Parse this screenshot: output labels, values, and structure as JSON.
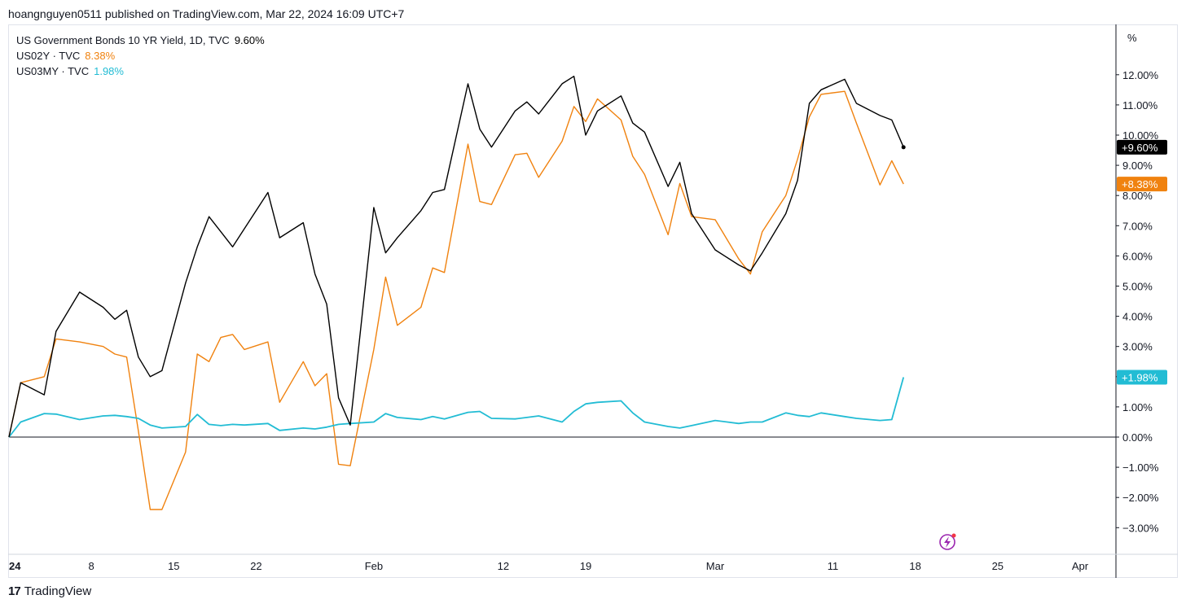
{
  "header": {
    "publish_line": "hoangnguyen0511 published on TradingView.com, Mar 22, 2024 16:09 UTC+7"
  },
  "footer": {
    "brand_text": "TradingView",
    "brand_logo": "17"
  },
  "unit_label": "%",
  "icons": {
    "lightning": "lightning-bolt-icon",
    "brand": "tradingview-logo-icon"
  },
  "colors": {
    "us10y": "#000000",
    "us02y": "#f0820f",
    "us03my": "#22bcd4",
    "axis": "#131722",
    "zero_line": "#131722"
  },
  "legend": [
    {
      "label": "US Government Bonds 10 YR Yield, 1D, TVC",
      "value": "9.60%",
      "color": "#000000"
    },
    {
      "label": "US02Y · TVC",
      "value": "8.38%",
      "color": "#f0820f"
    },
    {
      "label": "US03MY · TVC",
      "value": "1.98%",
      "color": "#22bcd4"
    }
  ],
  "chart_data": {
    "type": "line",
    "ylim": [
      -3.8,
      12.8
    ],
    "y_ticks": [
      {
        "value": 12,
        "label": "12.00%"
      },
      {
        "value": 11,
        "label": "11.00%"
      },
      {
        "value": 10,
        "label": "10.00%"
      },
      {
        "value": 9,
        "label": "9.00%"
      },
      {
        "value": 8,
        "label": "8.00%"
      },
      {
        "value": 7,
        "label": "7.00%"
      },
      {
        "value": 6,
        "label": "6.00%"
      },
      {
        "value": 5,
        "label": "5.00%"
      },
      {
        "value": 4,
        "label": "4.00%"
      },
      {
        "value": 3,
        "label": "3.00%"
      },
      {
        "value": 2,
        "label": "2.00%"
      },
      {
        "value": 1,
        "label": "1.00%"
      },
      {
        "value": 0,
        "label": "0.00%"
      },
      {
        "value": -1,
        "label": "−1.00%"
      },
      {
        "value": -2,
        "label": "−2.00%"
      },
      {
        "value": -3,
        "label": "−3.00%"
      }
    ],
    "x_ticks": [
      {
        "date": "2024-01-01",
        "label": "24",
        "bold": true
      },
      {
        "date": "2024-01-08",
        "label": "8"
      },
      {
        "date": "2024-01-15",
        "label": "15"
      },
      {
        "date": "2024-01-22",
        "label": "22"
      },
      {
        "date": "2024-02-01",
        "label": "Feb"
      },
      {
        "date": "2024-02-12",
        "label": "12"
      },
      {
        "date": "2024-02-19",
        "label": "19"
      },
      {
        "date": "2024-03-01",
        "label": "Mar"
      },
      {
        "date": "2024-03-11",
        "label": "11"
      },
      {
        "date": "2024-03-18",
        "label": "18"
      },
      {
        "date": "2024-03-25",
        "label": "25"
      },
      {
        "date": "2024-04-01",
        "label": "Apr"
      }
    ],
    "x_range": [
      "2024-01-01",
      "2024-04-05"
    ],
    "grid": false,
    "series": [
      {
        "name": "US Government Bonds 10 YR Yield, 1D, TVC",
        "color": "#000000",
        "last_label": "+9.60%",
        "points": [
          [
            "2024-01-01",
            0.0
          ],
          [
            "2024-01-02",
            1.8
          ],
          [
            "2024-01-04",
            1.4
          ],
          [
            "2024-01-05",
            3.5
          ],
          [
            "2024-01-07",
            4.8
          ],
          [
            "2024-01-09",
            4.3
          ],
          [
            "2024-01-10",
            3.9
          ],
          [
            "2024-01-11",
            4.2
          ],
          [
            "2024-01-12",
            2.65
          ],
          [
            "2024-01-13",
            2.0
          ],
          [
            "2024-01-14",
            2.2
          ],
          [
            "2024-01-16",
            5.1
          ],
          [
            "2024-01-17",
            6.3
          ],
          [
            "2024-01-18",
            7.3
          ],
          [
            "2024-01-19",
            6.8
          ],
          [
            "2024-01-20",
            6.3
          ],
          [
            "2024-01-21",
            6.9
          ],
          [
            "2024-01-23",
            8.1
          ],
          [
            "2024-01-24",
            6.6
          ],
          [
            "2024-01-26",
            7.1
          ],
          [
            "2024-01-27",
            5.4
          ],
          [
            "2024-01-28",
            4.4
          ],
          [
            "2024-01-29",
            1.3
          ],
          [
            "2024-01-30",
            0.4
          ],
          [
            "2024-02-01",
            7.6
          ],
          [
            "2024-02-02",
            6.1
          ],
          [
            "2024-02-03",
            6.6
          ],
          [
            "2024-02-05",
            7.5
          ],
          [
            "2024-02-06",
            8.1
          ],
          [
            "2024-02-07",
            8.2
          ],
          [
            "2024-02-09",
            11.7
          ],
          [
            "2024-02-10",
            10.2
          ],
          [
            "2024-02-11",
            9.6
          ],
          [
            "2024-02-13",
            10.8
          ],
          [
            "2024-02-14",
            11.1
          ],
          [
            "2024-02-15",
            10.7
          ],
          [
            "2024-02-17",
            11.7
          ],
          [
            "2024-02-18",
            11.95
          ],
          [
            "2024-02-19",
            10.0
          ],
          [
            "2024-02-20",
            10.8
          ],
          [
            "2024-02-22",
            11.3
          ],
          [
            "2024-02-23",
            10.4
          ],
          [
            "2024-02-24",
            10.1
          ],
          [
            "2024-02-26",
            8.3
          ],
          [
            "2024-02-27",
            9.1
          ],
          [
            "2024-02-28",
            7.4
          ],
          [
            "2024-03-01",
            6.2
          ],
          [
            "2024-03-03",
            5.7
          ],
          [
            "2024-03-04",
            5.5
          ],
          [
            "2024-03-05",
            6.1
          ],
          [
            "2024-03-07",
            7.4
          ],
          [
            "2024-03-08",
            8.5
          ],
          [
            "2024-03-09",
            11.05
          ],
          [
            "2024-03-10",
            11.5
          ],
          [
            "2024-03-12",
            11.85
          ],
          [
            "2024-03-13",
            11.05
          ],
          [
            "2024-03-15",
            10.65
          ],
          [
            "2024-03-16",
            10.5
          ],
          [
            "2024-03-17",
            9.6
          ]
        ]
      },
      {
        "name": "US02Y · TVC",
        "color": "#f0820f",
        "last_label": "+8.38%",
        "points": [
          [
            "2024-01-01",
            0.0
          ],
          [
            "2024-01-02",
            1.8
          ],
          [
            "2024-01-04",
            2.0
          ],
          [
            "2024-01-05",
            3.25
          ],
          [
            "2024-01-07",
            3.15
          ],
          [
            "2024-01-09",
            3.0
          ],
          [
            "2024-01-10",
            2.75
          ],
          [
            "2024-01-11",
            2.65
          ],
          [
            "2024-01-12",
            0.2
          ],
          [
            "2024-01-13",
            -2.4
          ],
          [
            "2024-01-14",
            -2.4
          ],
          [
            "2024-01-16",
            -0.5
          ],
          [
            "2024-01-17",
            2.75
          ],
          [
            "2024-01-18",
            2.5
          ],
          [
            "2024-01-19",
            3.3
          ],
          [
            "2024-01-20",
            3.4
          ],
          [
            "2024-01-21",
            2.9
          ],
          [
            "2024-01-23",
            3.15
          ],
          [
            "2024-01-24",
            1.15
          ],
          [
            "2024-01-26",
            2.5
          ],
          [
            "2024-01-27",
            1.7
          ],
          [
            "2024-01-28",
            2.1
          ],
          [
            "2024-01-29",
            -0.9
          ],
          [
            "2024-01-30",
            -0.95
          ],
          [
            "2024-02-01",
            2.9
          ],
          [
            "2024-02-02",
            5.3
          ],
          [
            "2024-02-03",
            3.7
          ],
          [
            "2024-02-05",
            4.3
          ],
          [
            "2024-02-06",
            5.6
          ],
          [
            "2024-02-07",
            5.45
          ],
          [
            "2024-02-09",
            9.7
          ],
          [
            "2024-02-10",
            7.8
          ],
          [
            "2024-02-11",
            7.7
          ],
          [
            "2024-02-13",
            9.35
          ],
          [
            "2024-02-14",
            9.4
          ],
          [
            "2024-02-15",
            8.6
          ],
          [
            "2024-02-17",
            9.8
          ],
          [
            "2024-02-18",
            10.95
          ],
          [
            "2024-02-19",
            10.45
          ],
          [
            "2024-02-20",
            11.2
          ],
          [
            "2024-02-22",
            10.5
          ],
          [
            "2024-02-23",
            9.3
          ],
          [
            "2024-02-24",
            8.7
          ],
          [
            "2024-02-26",
            6.7
          ],
          [
            "2024-02-27",
            8.4
          ],
          [
            "2024-02-28",
            7.3
          ],
          [
            "2024-03-01",
            7.2
          ],
          [
            "2024-03-03",
            5.9
          ],
          [
            "2024-03-04",
            5.4
          ],
          [
            "2024-03-05",
            6.8
          ],
          [
            "2024-03-07",
            8.0
          ],
          [
            "2024-03-08",
            9.2
          ],
          [
            "2024-03-09",
            10.6
          ],
          [
            "2024-03-10",
            11.35
          ],
          [
            "2024-03-12",
            11.45
          ],
          [
            "2024-03-13",
            10.4
          ],
          [
            "2024-03-15",
            8.35
          ],
          [
            "2024-03-16",
            9.15
          ],
          [
            "2024-03-17",
            8.38
          ]
        ]
      },
      {
        "name": "US03MY · TVC",
        "color": "#22bcd4",
        "last_label": "+1.98%",
        "points": [
          [
            "2024-01-01",
            0.0
          ],
          [
            "2024-01-02",
            0.5
          ],
          [
            "2024-01-04",
            0.78
          ],
          [
            "2024-01-05",
            0.76
          ],
          [
            "2024-01-07",
            0.58
          ],
          [
            "2024-01-09",
            0.7
          ],
          [
            "2024-01-10",
            0.72
          ],
          [
            "2024-01-11",
            0.68
          ],
          [
            "2024-01-12",
            0.62
          ],
          [
            "2024-01-13",
            0.4
          ],
          [
            "2024-01-14",
            0.3
          ],
          [
            "2024-01-16",
            0.35
          ],
          [
            "2024-01-17",
            0.75
          ],
          [
            "2024-01-18",
            0.42
          ],
          [
            "2024-01-19",
            0.38
          ],
          [
            "2024-01-20",
            0.42
          ],
          [
            "2024-01-21",
            0.4
          ],
          [
            "2024-01-23",
            0.45
          ],
          [
            "2024-01-24",
            0.22
          ],
          [
            "2024-01-26",
            0.3
          ],
          [
            "2024-01-27",
            0.27
          ],
          [
            "2024-01-28",
            0.33
          ],
          [
            "2024-01-29",
            0.42
          ],
          [
            "2024-01-30",
            0.45
          ],
          [
            "2024-02-01",
            0.5
          ],
          [
            "2024-02-02",
            0.78
          ],
          [
            "2024-02-03",
            0.65
          ],
          [
            "2024-02-05",
            0.58
          ],
          [
            "2024-02-06",
            0.68
          ],
          [
            "2024-02-07",
            0.6
          ],
          [
            "2024-02-09",
            0.82
          ],
          [
            "2024-02-10",
            0.85
          ],
          [
            "2024-02-11",
            0.62
          ],
          [
            "2024-02-13",
            0.6
          ],
          [
            "2024-02-14",
            0.65
          ],
          [
            "2024-02-15",
            0.7
          ],
          [
            "2024-02-17",
            0.5
          ],
          [
            "2024-02-18",
            0.85
          ],
          [
            "2024-02-19",
            1.1
          ],
          [
            "2024-02-20",
            1.15
          ],
          [
            "2024-02-22",
            1.2
          ],
          [
            "2024-02-23",
            0.8
          ],
          [
            "2024-02-24",
            0.5
          ],
          [
            "2024-02-26",
            0.35
          ],
          [
            "2024-02-27",
            0.3
          ],
          [
            "2024-02-28",
            0.38
          ],
          [
            "2024-03-01",
            0.55
          ],
          [
            "2024-03-03",
            0.45
          ],
          [
            "2024-03-04",
            0.5
          ],
          [
            "2024-03-05",
            0.5
          ],
          [
            "2024-03-07",
            0.8
          ],
          [
            "2024-03-08",
            0.72
          ],
          [
            "2024-03-09",
            0.68
          ],
          [
            "2024-03-10",
            0.8
          ],
          [
            "2024-03-12",
            0.68
          ],
          [
            "2024-03-13",
            0.62
          ],
          [
            "2024-03-15",
            0.55
          ],
          [
            "2024-03-16",
            0.58
          ],
          [
            "2024-03-17",
            1.98
          ]
        ]
      }
    ]
  }
}
